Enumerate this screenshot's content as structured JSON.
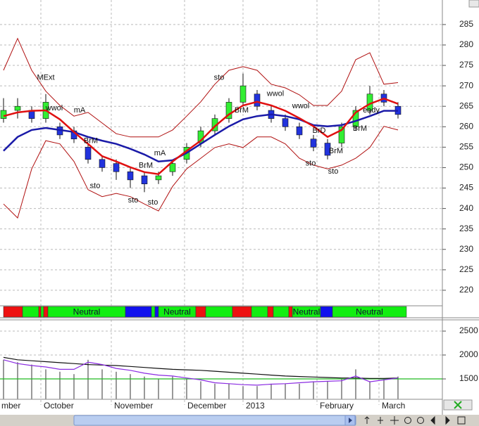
{
  "chart_data": [
    {
      "type": "candlestick",
      "xlim": [
        -0.25,
        31.15
      ],
      "ylim": [
        216.2,
        291
      ],
      "yticks": [
        220,
        225,
        230,
        235,
        240,
        245,
        250,
        255,
        260,
        265,
        270,
        275,
        280,
        285
      ],
      "grid": true,
      "up_color": "#33ee33",
      "down_color": "#2233dd",
      "open": [
        262,
        264,
        264,
        262,
        260,
        259,
        255,
        252,
        251,
        249,
        248,
        247,
        249,
        252,
        256,
        259,
        262,
        266,
        268,
        264,
        262,
        260,
        257,
        256,
        256,
        260,
        264,
        268,
        265
      ],
      "high": [
        267,
        267,
        265,
        268,
        261,
        260,
        256,
        253,
        252,
        250,
        249,
        249,
        252,
        256,
        260,
        263,
        267,
        273,
        269,
        265,
        263,
        261,
        258,
        257,
        261,
        265,
        270,
        269,
        266
      ],
      "low": [
        261,
        262,
        261,
        261,
        257,
        256,
        251,
        249,
        247,
        245,
        244,
        246,
        248,
        251,
        255,
        258,
        261,
        265,
        264,
        261,
        259,
        257,
        254,
        252,
        255,
        259,
        263,
        265,
        262
      ],
      "close": [
        264,
        265,
        262,
        266,
        258,
        257,
        252,
        250,
        249,
        247,
        246,
        248,
        251,
        255,
        259,
        262,
        266,
        270,
        265,
        262,
        260,
        258,
        255,
        253,
        260,
        264,
        268,
        266,
        263
      ],
      "series": [
        {
          "color": "#b01010",
          "width": 1,
          "values": [
            273.8,
            281.6,
            273.8,
            268.7,
            265.2,
            262.6,
            263.5,
            260.9,
            258.3,
            257.5,
            257.5,
            257.5,
            259.2,
            262.6,
            266.1,
            270.4,
            273.8,
            274.7,
            273.8,
            270.4,
            269.5,
            267.8,
            265.2,
            265.2,
            268.7,
            276.4,
            278.1,
            270.4,
            270.8
          ]
        },
        {
          "color": "#b01010",
          "width": 1,
          "values": [
            241.1,
            237.7,
            249.7,
            256.6,
            255.8,
            251.5,
            244.6,
            242.9,
            243.7,
            242.9,
            241.1,
            239.4,
            245.4,
            249.7,
            252.3,
            254.9,
            255.8,
            254.9,
            257.5,
            257.5,
            255.8,
            252.3,
            250.6,
            249.7,
            250.6,
            252.3,
            254.9,
            260.1,
            259.2
          ]
        },
        {
          "color": "#1a1aa8",
          "width": 2.5,
          "values": [
            254.1,
            257.5,
            259.2,
            259.7,
            259.2,
            258.7,
            257.5,
            256.6,
            255.8,
            254.6,
            253.2,
            251.5,
            251.8,
            253.6,
            255.8,
            258,
            260.1,
            261.8,
            262.6,
            263,
            262.6,
            261.8,
            260.4,
            260.1,
            260.4,
            261.4,
            262.6,
            263.9,
            263.9
          ]
        },
        {
          "color": "#e01010",
          "width": 2.5,
          "values": [
            262.6,
            263.5,
            263.9,
            264,
            261.8,
            258.7,
            255.8,
            252.8,
            251.5,
            250.1,
            248.9,
            248.4,
            251.5,
            254.1,
            256.6,
            260.1,
            263,
            265.2,
            266.1,
            265.2,
            263.9,
            262.1,
            260.1,
            257.5,
            259.2,
            263.5,
            265.6,
            266.9,
            265.6
          ]
        }
      ],
      "annotations": [
        {
          "text": "MExt",
          "x": 3.0,
          "y": 272
        },
        {
          "text": "wwol",
          "x": 3.6,
          "y": 264.5
        },
        {
          "text": "mA",
          "x": 5.4,
          "y": 264
        },
        {
          "text": "BrM",
          "x": 6.2,
          "y": 256.5
        },
        {
          "text": "sto",
          "x": 6.5,
          "y": 245.5
        },
        {
          "text": "sto",
          "x": 9.2,
          "y": 242
        },
        {
          "text": "sto",
          "x": 10.6,
          "y": 241.5
        },
        {
          "text": "mA",
          "x": 11.1,
          "y": 253.5
        },
        {
          "text": "BrM",
          "x": 10.1,
          "y": 250.5
        },
        {
          "text": "sto",
          "x": 15.3,
          "y": 272
        },
        {
          "text": "BrM",
          "x": 16.9,
          "y": 264
        },
        {
          "text": "wwol",
          "x": 19.3,
          "y": 268
        },
        {
          "text": "wwol",
          "x": 21.1,
          "y": 265
        },
        {
          "text": "sto",
          "x": 21.8,
          "y": 251
        },
        {
          "text": "BrD",
          "x": 22.4,
          "y": 259
        },
        {
          "text": "BrM",
          "x": 23.6,
          "y": 254
        },
        {
          "text": "sto",
          "x": 23.4,
          "y": 249
        },
        {
          "text": "BrM",
          "x": 25.3,
          "y": 259.5
        },
        {
          "text": "eady",
          "x": 26.1,
          "y": 264
        }
      ]
    },
    {
      "type": "band",
      "xlim": [
        -0.25,
        31.15
      ],
      "segments": [
        {
          "start": 0,
          "end": 1.35,
          "color": "#ee1111"
        },
        {
          "start": 1.35,
          "end": 2.5,
          "color": "#11ee11"
        },
        {
          "start": 2.5,
          "end": 2.65,
          "color": "#ee1111"
        },
        {
          "start": 2.65,
          "end": 2.85,
          "color": "#11ee11"
        },
        {
          "start": 2.85,
          "end": 3.15,
          "color": "#ee1111"
        },
        {
          "start": 3.15,
          "end": 8.65,
          "color": "#11ee11",
          "label": "Neutral"
        },
        {
          "start": 8.65,
          "end": 10.5,
          "color": "#1111ee"
        },
        {
          "start": 10.5,
          "end": 10.75,
          "color": "#11ee11"
        },
        {
          "start": 10.75,
          "end": 11.0,
          "color": "#1111ee"
        },
        {
          "start": 11.0,
          "end": 13.65,
          "color": "#11ee11",
          "label": "Neutral"
        },
        {
          "start": 13.65,
          "end": 14.35,
          "color": "#ee1111"
        },
        {
          "start": 14.35,
          "end": 16.25,
          "color": "#11ee11"
        },
        {
          "start": 16.25,
          "end": 17.6,
          "color": "#ee1111"
        },
        {
          "start": 17.6,
          "end": 18.75,
          "color": "#11ee11"
        },
        {
          "start": 18.75,
          "end": 19.15,
          "color": "#ee1111"
        },
        {
          "start": 19.15,
          "end": 20.25,
          "color": "#11ee11"
        },
        {
          "start": 20.25,
          "end": 20.5,
          "color": "#ee1111"
        },
        {
          "start": 20.5,
          "end": 22.5,
          "color": "#11ee11",
          "label": "Neutral"
        },
        {
          "start": 22.5,
          "end": 23.35,
          "color": "#1111ee"
        },
        {
          "start": 23.35,
          "end": 28.6,
          "color": "#11ee11",
          "label": "Neutral"
        }
      ]
    },
    {
      "type": "volume",
      "xlim": [
        -0.25,
        31.15
      ],
      "ylim": [
        1074,
        2735
      ],
      "yticks": [
        1500,
        2000,
        2500
      ],
      "xticks": [
        {
          "value": -1,
          "label": "mber"
        },
        {
          "value": 2.65,
          "label": "October"
        },
        {
          "value": 7.65,
          "label": "November"
        },
        {
          "value": 12.85,
          "label": "December"
        },
        {
          "value": 17.0,
          "label": "2013"
        },
        {
          "value": 22.25,
          "label": "February"
        },
        {
          "value": 26.65,
          "label": "March"
        }
      ],
      "bar_color": "#999999",
      "values": [
        1900,
        1850,
        1800,
        1700,
        1650,
        1600,
        1900,
        1700,
        1650,
        1600,
        1550,
        1500,
        1550,
        1500,
        1450,
        1400,
        1400,
        1350,
        1350,
        1400,
        1400,
        1400,
        1450,
        1450,
        1500,
        1700,
        1450,
        1500,
        1550
      ],
      "hline": {
        "value": 1500,
        "color": "#22bb22"
      },
      "series": [
        {
          "color": "#111111",
          "values": [
            1950,
            1900,
            1880,
            1860,
            1840,
            1820,
            1800,
            1790,
            1780,
            1760,
            1740,
            1720,
            1700,
            1690,
            1680,
            1660,
            1640,
            1620,
            1600,
            1580,
            1560,
            1550,
            1540,
            1530,
            1520,
            1520,
            1510,
            1510,
            1520
          ]
        },
        {
          "color": "#8a2be2",
          "values": [
            1900,
            1820,
            1780,
            1750,
            1700,
            1700,
            1850,
            1800,
            1720,
            1680,
            1620,
            1580,
            1560,
            1520,
            1480,
            1420,
            1400,
            1380,
            1370,
            1390,
            1400,
            1420,
            1440,
            1450,
            1460,
            1560,
            1440,
            1480,
            1520
          ]
        }
      ]
    }
  ]
}
